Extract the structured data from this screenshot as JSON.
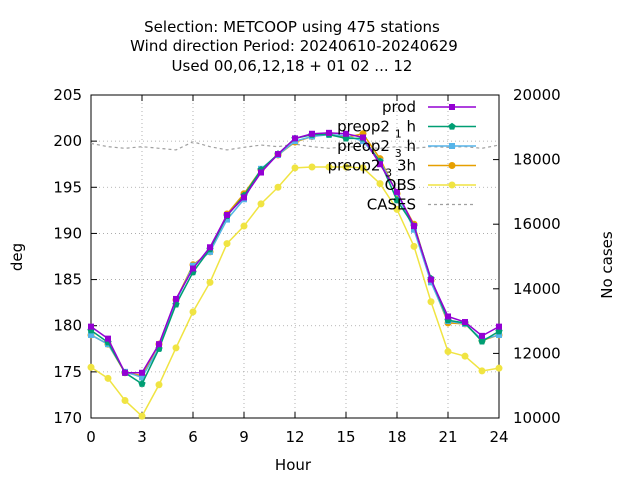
{
  "chart_data": {
    "type": "line",
    "title_lines": [
      "Selection: METCOOP using   475 stations",
      "Wind direction   Period: 20240610-20240629",
      "Used  00,06,12,18 + 01 02 ... 12"
    ],
    "xlabel": "Hour",
    "ylabel": "deg",
    "y2label": "No cases",
    "xlim": [
      0,
      24
    ],
    "ylim": [
      170,
      205
    ],
    "y2lim": [
      10000,
      20000
    ],
    "xticks": [
      0,
      3,
      6,
      9,
      12,
      15,
      18,
      21,
      24
    ],
    "yticks": [
      170,
      175,
      180,
      185,
      190,
      195,
      200,
      205
    ],
    "y2ticks": [
      10000,
      12000,
      14000,
      16000,
      18000,
      20000
    ],
    "grid": true,
    "legend_position": "top-right",
    "x": [
      0,
      1,
      2,
      3,
      4,
      5,
      6,
      7,
      8,
      9,
      10,
      11,
      12,
      13,
      14,
      15,
      16,
      17,
      18,
      19,
      20,
      21,
      22,
      23,
      24
    ],
    "series": [
      {
        "name": "prod",
        "color": "#9400d3",
        "marker": "square",
        "axis": "y",
        "values": [
          179.9,
          178.6,
          174.9,
          174.9,
          178.0,
          182.9,
          186.2,
          188.5,
          192.0,
          193.9,
          196.6,
          198.6,
          200.3,
          200.8,
          200.9,
          200.8,
          200.4,
          197.5,
          194.5,
          190.8,
          185.0,
          181.0,
          180.4,
          178.9,
          179.9
        ]
      },
      {
        "name": "preop2_1h",
        "label_main": "preop2",
        "label_sub": "1",
        "label_end": "h",
        "color": "#009e73",
        "marker": "pentagon",
        "axis": "y",
        "values": [
          179.5,
          178.2,
          174.9,
          173.7,
          177.5,
          182.3,
          185.8,
          188.3,
          191.9,
          194.1,
          196.9,
          198.6,
          200.3,
          200.7,
          200.7,
          200.3,
          200.3,
          197.8,
          193.6,
          190.8,
          185.1,
          180.6,
          180.3,
          178.3,
          179.4
        ]
      },
      {
        "name": "preop2_3h",
        "label_main": "preop2",
        "label_sub": "3",
        "label_end": "h",
        "color": "#56b4e9",
        "marker": "square",
        "axis": "y",
        "values": [
          179.0,
          178.0,
          175.0,
          174.4,
          177.6,
          182.6,
          186.5,
          188.0,
          191.5,
          193.7,
          197.0,
          198.5,
          200.0,
          200.5,
          200.7,
          200.6,
          200.0,
          197.8,
          194.4,
          190.4,
          184.7,
          180.5,
          180.2,
          178.5,
          179.0
        ]
      },
      {
        "name": "preop2_3h_b",
        "label_main": "preop2",
        "label_sub": "3",
        "label_end": "3h",
        "color": "#e69f00",
        "marker": "circle",
        "axis": "y",
        "values": [
          179.0,
          178.0,
          174.9,
          174.6,
          178.0,
          182.8,
          186.6,
          188.0,
          192.1,
          194.3,
          196.9,
          198.5,
          199.9,
          200.5,
          200.8,
          200.4,
          200.8,
          198.1,
          194.3,
          191.0,
          184.9,
          180.3,
          180.2,
          178.4,
          179.0
        ]
      },
      {
        "name": "OBS",
        "color": "#f0e442",
        "marker": "circle",
        "axis": "y",
        "values": [
          175.5,
          174.3,
          171.9,
          170.2,
          173.6,
          177.6,
          181.5,
          184.7,
          188.9,
          190.8,
          193.2,
          195.0,
          197.1,
          197.2,
          197.2,
          197.2,
          197.1,
          195.4,
          192.6,
          188.6,
          182.6,
          177.2,
          176.7,
          175.1,
          175.4
        ]
      },
      {
        "name": "CASES",
        "color": "#a0a0a0",
        "dashed": true,
        "marker": "none",
        "axis": "y2",
        "values": [
          18500,
          18400,
          18350,
          18400,
          18350,
          18300,
          18550,
          18400,
          18300,
          18380,
          18450,
          18400,
          18480,
          18400,
          18350,
          18400,
          18380,
          18350,
          18400,
          18350,
          18400,
          18380,
          18400,
          18350,
          18450
        ]
      }
    ]
  }
}
